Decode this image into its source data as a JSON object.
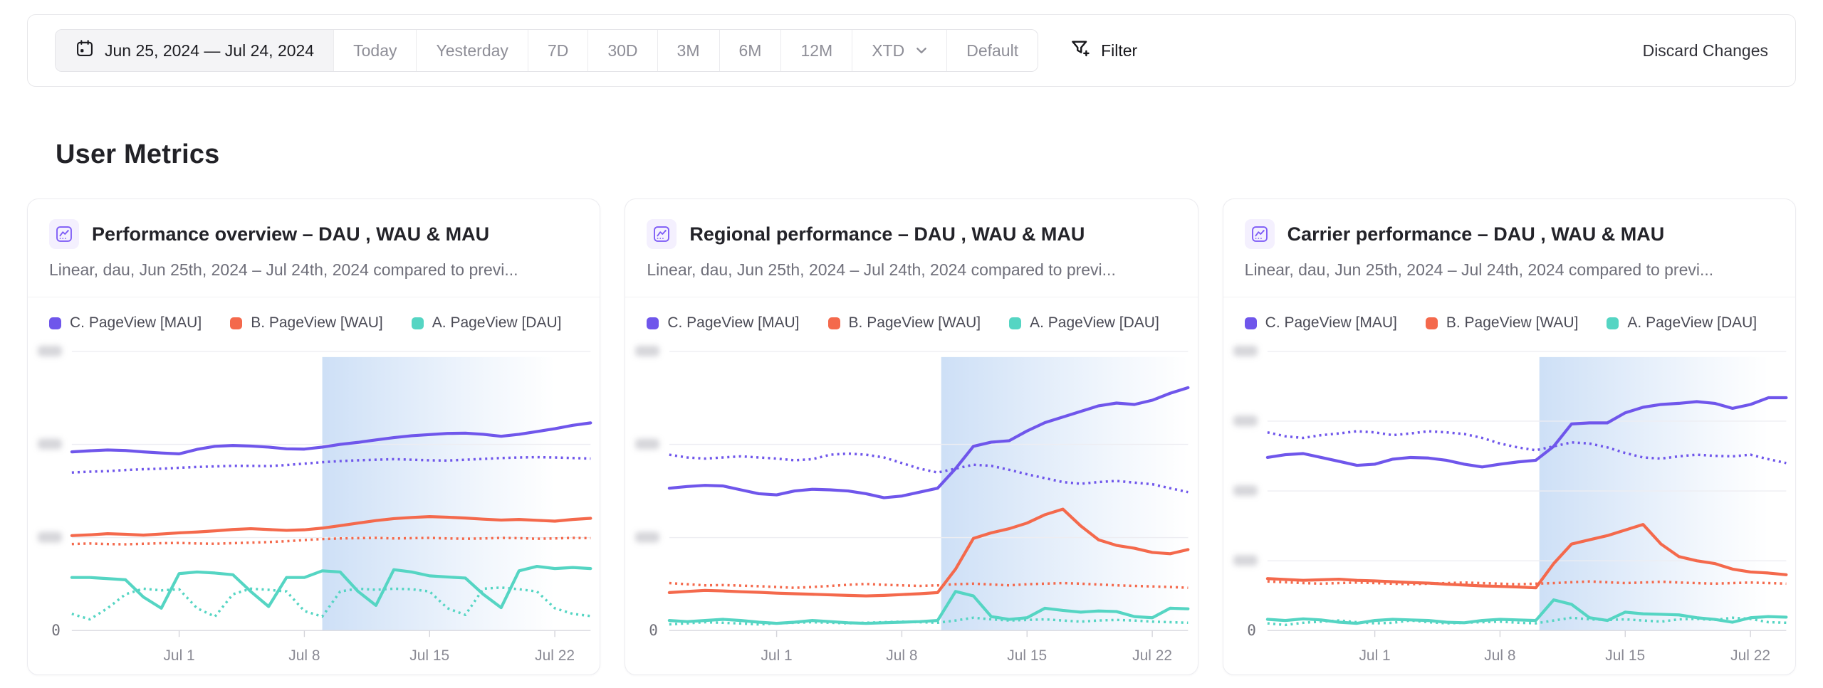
{
  "colors": {
    "purple": "#6F56EB",
    "orange": "#F4694C",
    "teal": "#55D5C3",
    "highlight": "#CBDEF6"
  },
  "toolbar": {
    "date_range_label": "Jun 25, 2024 — Jul 24, 2024",
    "presets": [
      {
        "id": "today",
        "label": "Today"
      },
      {
        "id": "yesterday",
        "label": "Yesterday"
      },
      {
        "id": "7d",
        "label": "7D"
      },
      {
        "id": "30d",
        "label": "30D"
      },
      {
        "id": "3m",
        "label": "3M"
      },
      {
        "id": "6m",
        "label": "6M"
      },
      {
        "id": "12m",
        "label": "12M"
      },
      {
        "id": "xtd",
        "label": "XTD",
        "has_dropdown": true
      },
      {
        "id": "default",
        "label": "Default"
      }
    ],
    "filter_label": "Filter",
    "discard_label": "Discard Changes"
  },
  "section_title": "User Metrics",
  "cards": [
    {
      "title": "Performance overview – DAU , WAU & MAU",
      "subtitle": "Linear, dau, Jun 25th, 2024 – Jul 24th, 2024 compared to previ...",
      "legend": [
        {
          "label": "C. PageView [MAU]",
          "color": "#6F56EB"
        },
        {
          "label": "B. PageView [WAU]",
          "color": "#F4694C"
        },
        {
          "label": "A. PageView [DAU]",
          "color": "#55D5C3"
        }
      ]
    },
    {
      "title": "Regional performance – DAU , WAU & MAU",
      "subtitle": "Linear, dau, Jun 25th, 2024 – Jul 24th, 2024 compared to previ...",
      "legend": [
        {
          "label": "C. PageView [MAU]",
          "color": "#6F56EB"
        },
        {
          "label": "B. PageView [WAU]",
          "color": "#F4694C"
        },
        {
          "label": "A. PageView [DAU]",
          "color": "#55D5C3"
        }
      ]
    },
    {
      "title": "Carrier performance – DAU , WAU & MAU",
      "subtitle": "Linear, dau, Jun 25th, 2024 – Jul 24th, 2024 compared to previ...",
      "legend": [
        {
          "label": "C. PageView [MAU]",
          "color": "#6F56EB"
        },
        {
          "label": "B. PageView [WAU]",
          "color": "#F4694C"
        },
        {
          "label": "A. PageView [DAU]",
          "color": "#55D5C3"
        }
      ]
    }
  ],
  "chart_data": [
    {
      "type": "line",
      "title": "Performance overview – DAU , WAU & MAU",
      "x_range": [
        "Jun 25",
        "Jul 24"
      ],
      "x_tick_labels": [
        {
          "index": 6,
          "label": "Jul 1"
        },
        {
          "index": 13,
          "label": "Jul 8"
        },
        {
          "index": 20,
          "label": "Jul 15"
        },
        {
          "index": 27,
          "label": "Jul 22"
        }
      ],
      "y_axis": {
        "min": 0,
        "baseline_label": "0",
        "gridline_values": [
          33.3,
          66.7,
          100
        ],
        "tick_labels_redacted": true
      },
      "highlight_region": {
        "start_index": 14,
        "end_index": 27,
        "color": "#CBDEF6"
      },
      "series": [
        {
          "name": "C. PageView [MAU]",
          "period": "current",
          "style": "solid",
          "color": "#6F56EB",
          "values": [
            64,
            64.4,
            64.7,
            64.5,
            64,
            63.6,
            63.3,
            64.9,
            66,
            66.3,
            66.1,
            65.7,
            65.1,
            65,
            65.7,
            66.7,
            67.4,
            68.3,
            69.1,
            69.8,
            70.2,
            70.6,
            70.7,
            70.3,
            69.6,
            70.3,
            71.3,
            72.3,
            73.5,
            74.4
          ]
        },
        {
          "name": "C. PageView [MAU]",
          "period": "previous",
          "style": "dotted",
          "color": "#6F56EB",
          "values": [
            56.6,
            56.9,
            57.1,
            57.5,
            57.8,
            58,
            58.3,
            58.6,
            58.8,
            59,
            59,
            58.9,
            59.3,
            59.8,
            60.3,
            60.7,
            61,
            61.2,
            61.4,
            61.2,
            61,
            60.9,
            61.2,
            61.5,
            61.8,
            62,
            62.1,
            62,
            61.8,
            61.6
          ]
        },
        {
          "name": "B. PageView [WAU]",
          "period": "current",
          "style": "solid",
          "color": "#F4694C",
          "values": [
            34,
            34.3,
            34.7,
            34.5,
            34.2,
            34.6,
            35,
            35.3,
            35.7,
            36.2,
            36.5,
            36.2,
            35.9,
            36.1,
            36.7,
            37.6,
            38.5,
            39.4,
            40.1,
            40.5,
            40.8,
            40.6,
            40.3,
            39.9,
            39.6,
            39.8,
            39.5,
            39.2,
            39.8,
            40.2
          ]
        },
        {
          "name": "B. PageView [WAU]",
          "period": "previous",
          "style": "dotted",
          "color": "#F4694C",
          "values": [
            31,
            31.2,
            31,
            30.9,
            31.1,
            31.3,
            31.4,
            31.2,
            31.1,
            31.3,
            31.5,
            31.7,
            32,
            32.4,
            32.8,
            33,
            33.1,
            33.2,
            33,
            33.1,
            33.2,
            33,
            32.9,
            33,
            33.2,
            33.1,
            32.9,
            33,
            33.2,
            33.1
          ]
        },
        {
          "name": "A. PageView [DAU]",
          "period": "current",
          "style": "solid",
          "color": "#55D5C3",
          "values": [
            19,
            19,
            18.6,
            18.2,
            12,
            8,
            20.4,
            21,
            20.6,
            20,
            14,
            8.6,
            19,
            19,
            21.4,
            21,
            14,
            9,
            21.8,
            21,
            19.6,
            19.2,
            18.8,
            13,
            8.2,
            21.4,
            23,
            22.2,
            22.6,
            22.2
          ]
        },
        {
          "name": "A. PageView [DAU]",
          "period": "previous",
          "style": "dotted",
          "color": "#55D5C3",
          "values": [
            6,
            4,
            8,
            13,
            15,
            14.4,
            14.8,
            8,
            5,
            13,
            15,
            14.6,
            14,
            7,
            5,
            14,
            15,
            14.6,
            15,
            14.8,
            14,
            8,
            5.6,
            15,
            15.4,
            14.8,
            14,
            8,
            6,
            5.2
          ]
        }
      ]
    },
    {
      "type": "line",
      "title": "Regional performance – DAU , WAU & MAU",
      "x_range": [
        "Jun 25",
        "Jul 24"
      ],
      "x_tick_labels": [
        {
          "index": 6,
          "label": "Jul 1"
        },
        {
          "index": 13,
          "label": "Jul 8"
        },
        {
          "index": 20,
          "label": "Jul 15"
        },
        {
          "index": 27,
          "label": "Jul 22"
        }
      ],
      "y_axis": {
        "min": 0,
        "baseline_label": "0",
        "gridline_values": [
          33.3,
          66.7,
          100
        ],
        "tick_labels_redacted": true
      },
      "highlight_region": {
        "start_index": 15.2,
        "end_index": 29,
        "color": "#CBDEF6"
      },
      "series": [
        {
          "name": "C. PageView [MAU]",
          "period": "current",
          "style": "solid",
          "color": "#6F56EB",
          "values": [
            51,
            51.6,
            52,
            51.8,
            50.4,
            49,
            48.6,
            50,
            50.6,
            50.4,
            50,
            49,
            47.6,
            48.2,
            49.6,
            51,
            58,
            66,
            67.5,
            68,
            71.5,
            74.5,
            76.5,
            78.5,
            80.5,
            81.5,
            81,
            82.5,
            85,
            87
          ]
        },
        {
          "name": "C. PageView [MAU]",
          "period": "previous",
          "style": "dotted",
          "color": "#6F56EB",
          "values": [
            63,
            62,
            61.6,
            62,
            62.4,
            62,
            61.6,
            61,
            61.4,
            63,
            63.4,
            63,
            62,
            60,
            58,
            56.6,
            58,
            59.4,
            59,
            57.6,
            56,
            54.6,
            53.2,
            52.6,
            53.2,
            53.6,
            53,
            52.4,
            51,
            49.6
          ]
        },
        {
          "name": "B. PageView [WAU]",
          "period": "current",
          "style": "solid",
          "color": "#F4694C",
          "values": [
            13.6,
            14,
            14.4,
            14.2,
            13.9,
            13.7,
            13.4,
            13.2,
            13,
            12.8,
            12.6,
            12.4,
            12.6,
            12.9,
            13.2,
            13.6,
            22,
            33,
            35,
            36.5,
            38.5,
            41.5,
            43.5,
            37.5,
            32.5,
            30.5,
            29.5,
            28,
            27.5,
            29
          ]
        },
        {
          "name": "B. PageView [WAU]",
          "period": "previous",
          "style": "dotted",
          "color": "#F4694C",
          "values": [
            17,
            16.6,
            16.2,
            16.3,
            16.1,
            15.9,
            15.6,
            15.3,
            15.6,
            16,
            16.4,
            16.7,
            16.4,
            16.2,
            16,
            16.2,
            16.6,
            16.8,
            16.5,
            16.2,
            16.6,
            16.8,
            17,
            16.8,
            16.5,
            16.2,
            16,
            15.8,
            15.6,
            15.3
          ]
        },
        {
          "name": "A. PageView [DAU]",
          "period": "current",
          "style": "solid",
          "color": "#55D5C3",
          "values": [
            3.6,
            3.2,
            3.6,
            4,
            3.6,
            3,
            2.6,
            3,
            3.6,
            3.2,
            2.8,
            2.6,
            2.8,
            3,
            3.2,
            3.6,
            14,
            12.4,
            5,
            4,
            4.6,
            8,
            7.2,
            6.6,
            7,
            6.8,
            5,
            4.6,
            8,
            7.8
          ]
        },
        {
          "name": "A. PageView [DAU]",
          "period": "previous",
          "style": "dotted",
          "color": "#55D5C3",
          "values": [
            2.2,
            2.6,
            3,
            2.8,
            2.5,
            2.2,
            2.6,
            2.8,
            3,
            2.8,
            2.6,
            2.8,
            3,
            3.2,
            3,
            2.8,
            3.6,
            4.6,
            4,
            3.6,
            3.8,
            4,
            3.6,
            3.2,
            3.6,
            3.8,
            3.6,
            3.2,
            3,
            2.8
          ]
        }
      ]
    },
    {
      "type": "line",
      "title": "Carrier performance – DAU , WAU & MAU",
      "x_range": [
        "Jun 25",
        "Jul 24"
      ],
      "x_tick_labels": [
        {
          "index": 6,
          "label": "Jul 1"
        },
        {
          "index": 13,
          "label": "Jul 8"
        },
        {
          "index": 20,
          "label": "Jul 15"
        },
        {
          "index": 27,
          "label": "Jul 22"
        }
      ],
      "y_axis": {
        "min": 0,
        "baseline_label": "0",
        "gridline_values": [
          25,
          50,
          75,
          100
        ],
        "tick_labels_redacted": true
      },
      "highlight_region": {
        "start_index": 15.2,
        "end_index": 28,
        "color": "#CBDEF6"
      },
      "series": [
        {
          "name": "C. PageView [MAU]",
          "period": "current",
          "style": "solid",
          "color": "#6F56EB",
          "values": [
            62,
            63,
            63.4,
            62,
            60.6,
            59.2,
            59.6,
            61.4,
            62,
            61.8,
            61,
            59.6,
            58.6,
            59.6,
            60.4,
            61,
            66,
            74,
            74.4,
            74.4,
            78,
            80,
            81,
            81.4,
            82,
            81.4,
            79.6,
            81,
            83.4,
            83.4
          ]
        },
        {
          "name": "C. PageView [MAU]",
          "period": "previous",
          "style": "dotted",
          "color": "#6F56EB",
          "values": [
            71,
            69.6,
            69,
            70,
            70.6,
            71.4,
            71,
            70,
            70.6,
            71.4,
            71,
            70.4,
            69,
            67,
            65.6,
            64.6,
            66,
            67.4,
            67,
            65.6,
            63.6,
            62,
            61.6,
            62.4,
            63,
            62.6,
            62.4,
            63,
            61.4,
            60
          ]
        },
        {
          "name": "B. PageView [WAU]",
          "period": "current",
          "style": "solid",
          "color": "#F4694C",
          "values": [
            18.6,
            18.3,
            18,
            18.2,
            18.4,
            18,
            17.8,
            17.5,
            17.2,
            17,
            16.6,
            16.3,
            16,
            15.8,
            15.6,
            15.3,
            24,
            31,
            32.5,
            34,
            36,
            38,
            31,
            26.5,
            25,
            24,
            22,
            21,
            20.6,
            20
          ]
        },
        {
          "name": "B. PageView [WAU]",
          "period": "previous",
          "style": "dotted",
          "color": "#F4694C",
          "values": [
            17.6,
            17.3,
            17,
            16.8,
            17,
            17.2,
            17,
            16.8,
            16.6,
            16.8,
            17,
            17.2,
            17,
            16.8,
            16.6,
            16.8,
            17,
            17.3,
            17.6,
            17.3,
            17,
            17.2,
            17.5,
            17.2,
            17,
            16.8,
            17,
            17.2,
            17,
            16.8
          ]
        },
        {
          "name": "A. PageView [DAU]",
          "period": "current",
          "style": "solid",
          "color": "#55D5C3",
          "values": [
            4,
            3.6,
            4.2,
            3.8,
            3,
            2.6,
            3.6,
            4,
            3.8,
            3.6,
            3,
            2.8,
            3.6,
            4,
            3.8,
            3.6,
            11,
            9.4,
            4.6,
            3.6,
            6.6,
            6,
            5.8,
            5.6,
            4.6,
            4,
            3,
            4.6,
            5,
            4.8
          ]
        },
        {
          "name": "A. PageView [DAU]",
          "period": "previous",
          "style": "dotted",
          "color": "#55D5C3",
          "values": [
            2.6,
            2,
            2.8,
            3.2,
            3.6,
            3,
            2.6,
            2.8,
            3.6,
            3,
            2.6,
            2.8,
            3,
            3.2,
            2.8,
            2.6,
            3.6,
            4.6,
            4,
            3.8,
            4,
            3.6,
            3.2,
            4,
            4.2,
            3.8,
            4.6,
            4.2,
            3,
            2.8
          ]
        }
      ]
    }
  ]
}
